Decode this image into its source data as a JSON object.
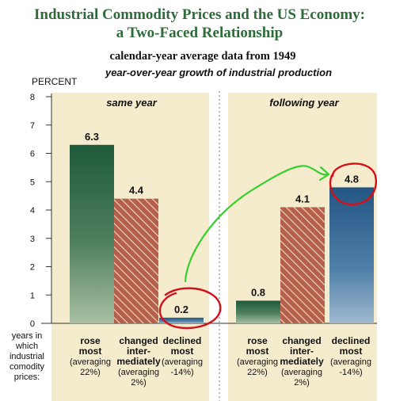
{
  "colors": {
    "title": "#2f6b3a",
    "panel": "#f5eccd",
    "bar_rose": "#2f6b4a",
    "bar_changed": "#b05840",
    "bar_declined": "#2f5f8f",
    "annotation": "#35d02e",
    "highlight": "#d3101a"
  },
  "chart_data": {
    "type": "bar",
    "title": "Industrial Commodity Prices and the US Economy:",
    "subtitle": "a Two-Faced Relationship",
    "caption": "calendar-year average data from 1949",
    "measure": "year-over-year growth of industrial production",
    "ylabel": "PERCENT",
    "ylim": [
      0,
      8
    ],
    "yticks": [
      "0",
      "1",
      "2",
      "3",
      "4",
      "5",
      "6",
      "7",
      "8"
    ],
    "row_label": [
      "years in",
      "which",
      "industrial",
      "comodity",
      "prices:"
    ],
    "panels": [
      {
        "label": "same year",
        "bars": [
          {
            "value": 6.3,
            "label": "6.3",
            "color": "bar_rose",
            "category": [
              "rose",
              "most"
            ],
            "note": [
              "(averaging",
              "22%)"
            ]
          },
          {
            "value": 4.4,
            "label": "4.4",
            "color": "bar_changed",
            "category": [
              "changed",
              "inter-",
              "mediately"
            ],
            "note": [
              "(averaging",
              "2%)"
            ]
          },
          {
            "value": 0.2,
            "label": "0.2",
            "color": "bar_declined",
            "category": [
              "declined",
              "most"
            ],
            "note": [
              "(averaging",
              "-14%)"
            ]
          }
        ]
      },
      {
        "label": "following year",
        "bars": [
          {
            "value": 0.8,
            "label": "0.8",
            "color": "bar_rose",
            "category": [
              "rose",
              "most"
            ],
            "note": [
              "(averaging",
              "22%)"
            ]
          },
          {
            "value": 4.1,
            "label": "4.1",
            "color": "bar_changed",
            "category": [
              "changed",
              "inter-",
              "mediately"
            ],
            "note": [
              "(averaging",
              "2%)"
            ]
          },
          {
            "value": 4.8,
            "label": "4.8",
            "color": "bar_declined",
            "category": [
              "declined",
              "most"
            ],
            "note": [
              "(averaging",
              "-14%)"
            ]
          }
        ]
      }
    ]
  }
}
